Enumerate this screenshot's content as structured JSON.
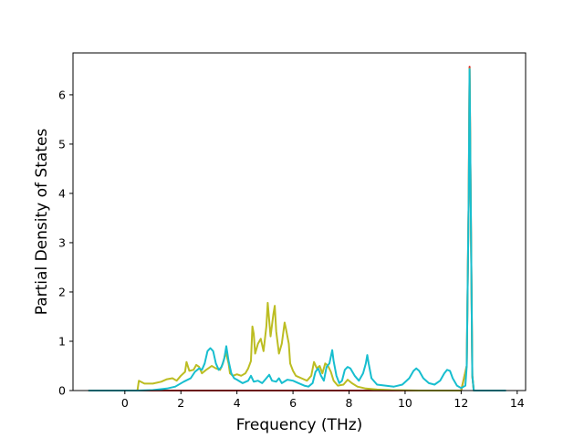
{
  "chart_data": {
    "type": "line",
    "title": "",
    "xlabel": "Frequency (THz)",
    "ylabel": "Partial Density of States",
    "xlim": [
      -1.85,
      14.3
    ],
    "ylim": [
      0,
      6.85
    ],
    "xticks": [
      0,
      2,
      4,
      6,
      8,
      10,
      12,
      14
    ],
    "yticks": [
      0,
      1,
      2,
      3,
      4,
      5,
      6
    ],
    "grid": false,
    "legend": "none",
    "series": [
      {
        "color": "#d62728",
        "points": [
          [
            -1.3,
            0
          ],
          [
            12.0,
            0
          ],
          [
            12.2,
            0.5
          ],
          [
            12.27,
            4.0
          ],
          [
            12.3,
            6.57
          ],
          [
            12.34,
            4.0
          ],
          [
            12.4,
            0.3
          ],
          [
            12.45,
            0
          ],
          [
            13.6,
            0
          ]
        ]
      },
      {
        "color": "#bcbd22",
        "points": [
          [
            -1.3,
            0
          ],
          [
            0.45,
            0
          ],
          [
            0.5,
            0.2
          ],
          [
            0.7,
            0.14
          ],
          [
            1.0,
            0.14
          ],
          [
            1.3,
            0.18
          ],
          [
            1.5,
            0.23
          ],
          [
            1.7,
            0.25
          ],
          [
            1.85,
            0.2
          ],
          [
            2.0,
            0.3
          ],
          [
            2.15,
            0.38
          ],
          [
            2.2,
            0.58
          ],
          [
            2.3,
            0.4
          ],
          [
            2.45,
            0.42
          ],
          [
            2.55,
            0.52
          ],
          [
            2.65,
            0.48
          ],
          [
            2.75,
            0.35
          ],
          [
            2.9,
            0.42
          ],
          [
            3.0,
            0.46
          ],
          [
            3.1,
            0.5
          ],
          [
            3.25,
            0.45
          ],
          [
            3.4,
            0.42
          ],
          [
            3.5,
            0.55
          ],
          [
            3.6,
            0.78
          ],
          [
            3.7,
            0.55
          ],
          [
            3.75,
            0.35
          ],
          [
            3.85,
            0.3
          ],
          [
            4.0,
            0.33
          ],
          [
            4.15,
            0.3
          ],
          [
            4.3,
            0.35
          ],
          [
            4.4,
            0.45
          ],
          [
            4.5,
            0.6
          ],
          [
            4.55,
            1.3
          ],
          [
            4.6,
            1.15
          ],
          [
            4.65,
            0.75
          ],
          [
            4.75,
            0.95
          ],
          [
            4.85,
            1.05
          ],
          [
            4.95,
            0.8
          ],
          [
            5.05,
            1.3
          ],
          [
            5.1,
            1.78
          ],
          [
            5.2,
            1.1
          ],
          [
            5.3,
            1.55
          ],
          [
            5.35,
            1.72
          ],
          [
            5.4,
            1.2
          ],
          [
            5.5,
            0.75
          ],
          [
            5.6,
            0.95
          ],
          [
            5.7,
            1.38
          ],
          [
            5.75,
            1.25
          ],
          [
            5.85,
            0.95
          ],
          [
            5.9,
            0.55
          ],
          [
            6.0,
            0.4
          ],
          [
            6.1,
            0.3
          ],
          [
            6.3,
            0.25
          ],
          [
            6.5,
            0.2
          ],
          [
            6.65,
            0.3
          ],
          [
            6.75,
            0.58
          ],
          [
            6.85,
            0.45
          ],
          [
            6.95,
            0.5
          ],
          [
            7.05,
            0.35
          ],
          [
            7.15,
            0.55
          ],
          [
            7.25,
            0.5
          ],
          [
            7.35,
            0.38
          ],
          [
            7.45,
            0.2
          ],
          [
            7.6,
            0.1
          ],
          [
            7.8,
            0.12
          ],
          [
            7.95,
            0.22
          ],
          [
            8.1,
            0.15
          ],
          [
            8.3,
            0.08
          ],
          [
            8.6,
            0.04
          ],
          [
            9.0,
            0.02
          ],
          [
            9.5,
            0.01
          ],
          [
            10.5,
            0.0
          ],
          [
            12.0,
            0
          ],
          [
            12.2,
            0.5
          ],
          [
            12.27,
            4.0
          ],
          [
            12.3,
            6.53
          ],
          [
            12.34,
            4.0
          ],
          [
            12.4,
            0.3
          ],
          [
            12.45,
            0
          ],
          [
            13.6,
            0
          ]
        ]
      },
      {
        "color": "#17becf",
        "points": [
          [
            -1.3,
            0
          ],
          [
            0.5,
            0
          ],
          [
            1.0,
            0.01
          ],
          [
            1.5,
            0.04
          ],
          [
            1.8,
            0.08
          ],
          [
            2.1,
            0.18
          ],
          [
            2.35,
            0.25
          ],
          [
            2.5,
            0.38
          ],
          [
            2.65,
            0.45
          ],
          [
            2.75,
            0.42
          ],
          [
            2.85,
            0.55
          ],
          [
            2.95,
            0.8
          ],
          [
            3.05,
            0.86
          ],
          [
            3.15,
            0.8
          ],
          [
            3.25,
            0.55
          ],
          [
            3.35,
            0.42
          ],
          [
            3.45,
            0.48
          ],
          [
            3.55,
            0.65
          ],
          [
            3.62,
            0.9
          ],
          [
            3.7,
            0.6
          ],
          [
            3.8,
            0.35
          ],
          [
            3.9,
            0.25
          ],
          [
            4.0,
            0.22
          ],
          [
            4.2,
            0.15
          ],
          [
            4.4,
            0.2
          ],
          [
            4.5,
            0.3
          ],
          [
            4.6,
            0.18
          ],
          [
            4.75,
            0.2
          ],
          [
            4.9,
            0.15
          ],
          [
            5.05,
            0.25
          ],
          [
            5.15,
            0.32
          ],
          [
            5.25,
            0.2
          ],
          [
            5.4,
            0.18
          ],
          [
            5.5,
            0.25
          ],
          [
            5.6,
            0.15
          ],
          [
            5.8,
            0.22
          ],
          [
            6.0,
            0.2
          ],
          [
            6.2,
            0.15
          ],
          [
            6.4,
            0.1
          ],
          [
            6.55,
            0.08
          ],
          [
            6.7,
            0.15
          ],
          [
            6.8,
            0.38
          ],
          [
            6.9,
            0.45
          ],
          [
            7.0,
            0.3
          ],
          [
            7.1,
            0.2
          ],
          [
            7.2,
            0.48
          ],
          [
            7.3,
            0.55
          ],
          [
            7.4,
            0.82
          ],
          [
            7.45,
            0.6
          ],
          [
            7.55,
            0.3
          ],
          [
            7.65,
            0.15
          ],
          [
            7.75,
            0.2
          ],
          [
            7.85,
            0.42
          ],
          [
            7.95,
            0.48
          ],
          [
            8.05,
            0.45
          ],
          [
            8.2,
            0.3
          ],
          [
            8.35,
            0.2
          ],
          [
            8.5,
            0.35
          ],
          [
            8.6,
            0.55
          ],
          [
            8.65,
            0.72
          ],
          [
            8.7,
            0.55
          ],
          [
            8.8,
            0.25
          ],
          [
            9.0,
            0.12
          ],
          [
            9.3,
            0.1
          ],
          [
            9.6,
            0.08
          ],
          [
            9.9,
            0.12
          ],
          [
            10.15,
            0.25
          ],
          [
            10.3,
            0.4
          ],
          [
            10.4,
            0.45
          ],
          [
            10.5,
            0.4
          ],
          [
            10.65,
            0.25
          ],
          [
            10.85,
            0.15
          ],
          [
            11.05,
            0.12
          ],
          [
            11.25,
            0.2
          ],
          [
            11.4,
            0.35
          ],
          [
            11.5,
            0.42
          ],
          [
            11.6,
            0.4
          ],
          [
            11.7,
            0.25
          ],
          [
            11.85,
            0.1
          ],
          [
            12.0,
            0.05
          ],
          [
            12.15,
            0.1
          ],
          [
            12.2,
            0.5
          ],
          [
            12.27,
            4.0
          ],
          [
            12.3,
            6.52
          ],
          [
            12.34,
            4.0
          ],
          [
            12.4,
            0.3
          ],
          [
            12.45,
            0
          ],
          [
            13.6,
            0
          ]
        ]
      }
    ]
  }
}
